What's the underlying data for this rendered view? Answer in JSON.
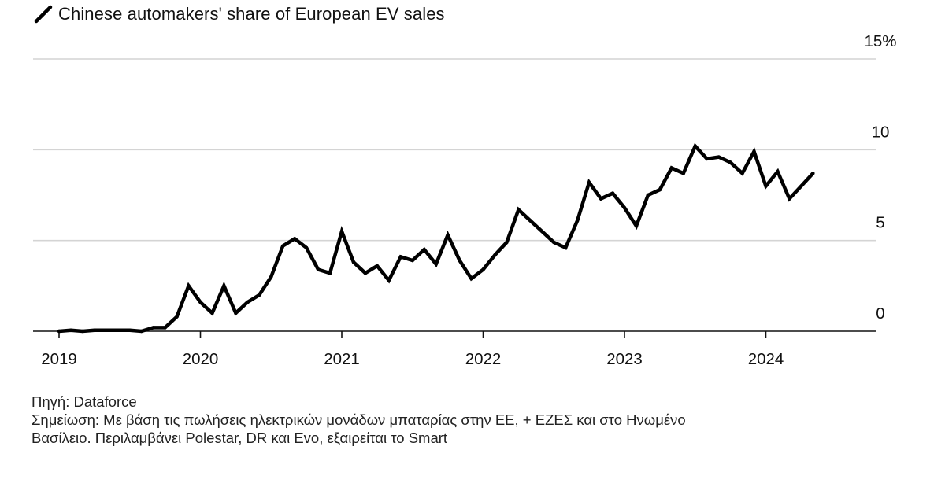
{
  "chart_data": {
    "type": "line",
    "title": "",
    "xlabel": "",
    "ylabel": "",
    "ylim": [
      0,
      15
    ],
    "xlim": [
      "2019-01",
      "2024-12"
    ],
    "y_ticks": [
      {
        "value": 15,
        "label": "15%"
      },
      {
        "value": 10,
        "label": "10"
      },
      {
        "value": 5,
        "label": "5"
      },
      {
        "value": 0,
        "label": "0"
      }
    ],
    "x_ticks": [
      {
        "value": "2019-01",
        "label": "2019"
      },
      {
        "value": "2020-01",
        "label": "2020"
      },
      {
        "value": "2021-01",
        "label": "2021"
      },
      {
        "value": "2022-01",
        "label": "2022"
      },
      {
        "value": "2023-01",
        "label": "2023"
      },
      {
        "value": "2024-01",
        "label": "2024"
      }
    ],
    "grid": "horizontal",
    "legend_position": "top-left",
    "series": [
      {
        "name": "Chinese automakers' share of European EV sales",
        "color": "#000000",
        "x": [
          "2019-01",
          "2019-02",
          "2019-03",
          "2019-04",
          "2019-05",
          "2019-06",
          "2019-07",
          "2019-08",
          "2019-09",
          "2019-10",
          "2019-11",
          "2019-12",
          "2020-01",
          "2020-02",
          "2020-03",
          "2020-04",
          "2020-05",
          "2020-06",
          "2020-07",
          "2020-08",
          "2020-09",
          "2020-10",
          "2020-11",
          "2020-12",
          "2021-01",
          "2021-02",
          "2021-03",
          "2021-04",
          "2021-05",
          "2021-06",
          "2021-07",
          "2021-08",
          "2021-09",
          "2021-10",
          "2021-11",
          "2021-12",
          "2022-01",
          "2022-02",
          "2022-03",
          "2022-04",
          "2022-05",
          "2022-06",
          "2022-07",
          "2022-08",
          "2022-09",
          "2022-10",
          "2022-11",
          "2022-12",
          "2023-01",
          "2023-02",
          "2023-03",
          "2023-04",
          "2023-05",
          "2023-06",
          "2023-07",
          "2023-08",
          "2023-09",
          "2023-10",
          "2023-11",
          "2023-12",
          "2024-01",
          "2024-02",
          "2024-03",
          "2024-04",
          "2024-05"
        ],
        "values": [
          0.0,
          0.05,
          0.0,
          0.05,
          0.05,
          0.05,
          0.05,
          0.0,
          0.2,
          0.2,
          0.8,
          2.5,
          1.6,
          1.0,
          2.5,
          1.0,
          1.6,
          2.0,
          3.0,
          4.7,
          5.1,
          4.6,
          3.4,
          3.2,
          5.5,
          3.8,
          3.2,
          3.6,
          2.8,
          4.1,
          3.9,
          4.5,
          3.7,
          5.3,
          3.9,
          2.9,
          3.4,
          4.2,
          4.9,
          6.7,
          6.1,
          5.5,
          4.9,
          4.6,
          6.1,
          8.2,
          7.3,
          7.6,
          6.8,
          5.8,
          7.5,
          7.8,
          9.0,
          8.7,
          10.2,
          9.5,
          9.6,
          9.3,
          8.7,
          9.9,
          8.0,
          8.8,
          7.3,
          8.0,
          8.7
        ]
      }
    ]
  },
  "footer": {
    "source": "Πηγή: Dataforce",
    "note_line1": "Σημείωση: Με βάση τις πωλήσεις ηλεκτρικών μονάδων μπαταρίας στην ΕΕ, + ΕΖΕΣ και στο Ηνωμένο",
    "note_line2": "Βασίλειο. Περιλαμβάνει Polestar, DR και Evo, εξαιρείται το Smart"
  }
}
